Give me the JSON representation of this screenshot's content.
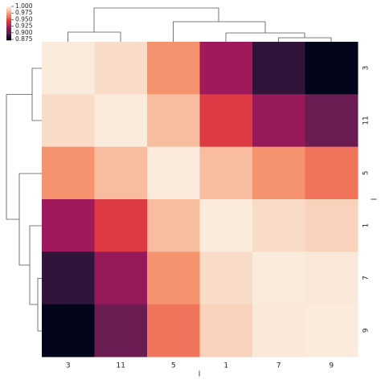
{
  "chart_data": {
    "type": "heatmap",
    "row_labels": [
      "3",
      "11",
      "5",
      "1",
      "7",
      "9"
    ],
    "col_labels": [
      "3",
      "11",
      "5",
      "1",
      "7",
      "9"
    ],
    "xlabel": "l",
    "ylabel": "l",
    "values": [
      [
        1.0,
        0.995,
        0.972,
        0.923,
        0.888,
        0.872
      ],
      [
        0.995,
        1.0,
        0.985,
        0.945,
        0.92,
        0.907
      ],
      [
        0.972,
        0.985,
        1.0,
        0.985,
        0.972,
        0.963
      ],
      [
        0.923,
        0.945,
        0.985,
        1.0,
        0.995,
        0.992
      ],
      [
        0.888,
        0.92,
        0.972,
        0.995,
        1.0,
        0.999
      ],
      [
        0.872,
        0.907,
        0.963,
        0.992,
        0.999,
        1.0
      ]
    ],
    "clim": [
      0.872,
      1.0
    ],
    "colorbar_ticks": [
      0.875,
      {
        "value": 0.9,
        "label": "0.900"
      },
      0.925,
      {
        "value": 0.95,
        "label": "0.950"
      },
      0.975,
      {
        "value": 1.0,
        "label": "1.000"
      }
    ],
    "colormap": [
      "#03051a",
      "#4c1d4b",
      "#a11a5b",
      "#e83f3f",
      "#f69c73",
      "#faebdd"
    ]
  }
}
